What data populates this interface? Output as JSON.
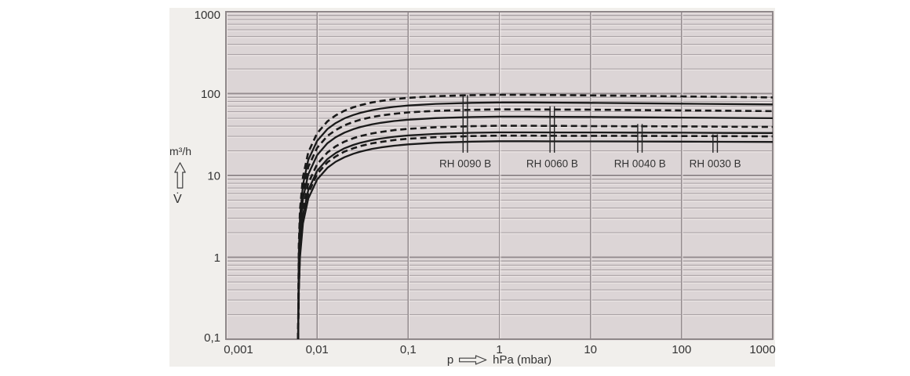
{
  "colors": {
    "panel_bg": "#f1efec",
    "plot_bg": "#dcd5d6",
    "grid_minor": "#aaa2a5",
    "grid_major": "#948c8f",
    "grid_highlight": "#ebe5e4",
    "plot_border": "#8e8789",
    "curve": "#1a1a1a",
    "text": "#333333"
  },
  "y_axis": {
    "unit": "m³/h",
    "symbol": "V̇",
    "ticks": [
      {
        "label": "1000",
        "value": 1000
      },
      {
        "label": "100",
        "value": 100
      },
      {
        "label": "10",
        "value": 10
      },
      {
        "label": "1",
        "value": 1
      },
      {
        "label": "0,1",
        "value": 0.1
      }
    ]
  },
  "x_axis": {
    "symbol": "p",
    "unit_label": "hPa (mbar)",
    "ticks": [
      {
        "label": "0,001",
        "value": 0.001
      },
      {
        "label": "0,01",
        "value": 0.01
      },
      {
        "label": "0,1",
        "value": 0.1
      },
      {
        "label": "1",
        "value": 1
      },
      {
        "label": "10",
        "value": 10
      },
      {
        "label": "100",
        "value": 100
      },
      {
        "label": "1000",
        "value": 1000
      }
    ]
  },
  "chart_data": {
    "type": "line",
    "title": "",
    "xlabel": "p hPa (mbar)",
    "ylabel": "V̇ m³/h",
    "x_scale": "log",
    "y_scale": "log",
    "xlim": [
      0.001,
      1000
    ],
    "ylim": [
      0.1,
      1000
    ],
    "grid": "horizontal major+minor log lines, vertical decade lines",
    "legend_position": "inline pump labels under marker ticks",
    "p": [
      0.0062,
      0.0063,
      0.0065,
      0.007,
      0.008,
      0.01,
      0.013,
      0.016,
      0.02,
      0.025,
      0.03,
      0.04,
      0.05,
      0.07,
      0.1,
      0.2,
      0.5,
      1,
      2,
      5,
      10,
      30,
      100,
      300,
      1000
    ],
    "series": [
      {
        "name": "RH 0090 B",
        "line": "dashed",
        "v": [
          0.1,
          1.4,
          3.8,
          9.6,
          19.1,
          32.7,
          45.8,
          54.2,
          61.8,
          68.0,
          72.3,
          77.9,
          81.3,
          85.5,
          88.8,
          92.9,
          95.6,
          96.7,
          96.5,
          95.8,
          95.1,
          94.0,
          92.5,
          91.2,
          89.8
        ]
      },
      {
        "name": "RH 0090 B",
        "line": "solid",
        "v": [
          0.1,
          1.1,
          3.1,
          7.7,
          15.4,
          26.4,
          36.9,
          43.7,
          49.8,
          54.8,
          58.3,
          62.8,
          65.6,
          68.9,
          71.6,
          74.9,
          77.1,
          78.0,
          77.9,
          77.5,
          77.1,
          76.3,
          75.5,
          74.6,
          73.8
        ]
      },
      {
        "name": "RH 0060 B",
        "line": "dashed",
        "v": [
          0.1,
          0.9,
          2.5,
          6.4,
          12.7,
          21.7,
          30.4,
          35.9,
          41.0,
          45.1,
          48.0,
          51.7,
          54.0,
          56.7,
          58.9,
          61.6,
          63.4,
          64.2,
          64.1,
          63.8,
          63.6,
          63.0,
          62.4,
          61.8,
          61.1
        ]
      },
      {
        "name": "RH 0060 B",
        "line": "solid",
        "v": [
          0.1,
          0.7,
          2.1,
          5.2,
          10.3,
          17.7,
          24.8,
          29.3,
          33.4,
          36.8,
          39.1,
          42.1,
          44.0,
          46.2,
          48.0,
          50.2,
          51.7,
          52.3,
          52.3,
          52.0,
          51.9,
          51.4,
          51.0,
          50.5,
          50.1
        ]
      },
      {
        "name": "RH 0040 B",
        "line": "dashed",
        "v": [
          0.1,
          0.6,
          1.6,
          4.0,
          8.0,
          13.7,
          19.1,
          22.7,
          25.9,
          28.5,
          30.3,
          32.6,
          34.0,
          35.8,
          37.1,
          38.9,
          40.0,
          40.5,
          40.4,
          40.3,
          40.1,
          39.9,
          39.8,
          39.5,
          39.2
        ]
      },
      {
        "name": "RH 0040 B",
        "line": "solid",
        "v": [
          0.1,
          0.5,
          1.3,
          3.3,
          6.6,
          11.4,
          15.9,
          18.8,
          21.5,
          23.6,
          25.1,
          27.0,
          28.2,
          29.7,
          30.8,
          32.2,
          33.2,
          33.6,
          33.6,
          33.5,
          33.5,
          33.4,
          33.3,
          33.1,
          33.0
        ]
      },
      {
        "name": "RH 0030 B",
        "line": "dashed",
        "v": [
          0.1,
          0.4,
          1.2,
          3.0,
          6.0,
          10.4,
          14.5,
          17.1,
          19.6,
          21.5,
          22.9,
          24.7,
          25.7,
          27.1,
          28.1,
          29.4,
          30.3,
          30.6,
          30.6,
          30.5,
          30.5,
          30.4,
          30.3,
          30.2,
          30.0
        ]
      },
      {
        "name": "RH 0030 B",
        "line": "solid",
        "v": [
          0.1,
          0.4,
          1.0,
          2.6,
          5.2,
          8.9,
          12.4,
          14.7,
          16.7,
          18.4,
          19.6,
          21.1,
          22.0,
          23.1,
          24.0,
          25.1,
          25.9,
          26.2,
          26.2,
          26.1,
          26.1,
          26.0,
          25.9,
          25.8,
          25.7
        ]
      }
    ],
    "pump_labels": [
      {
        "label": "RH 0090 B",
        "p_tick1": 0.4,
        "p_tick2": 0.447,
        "v_top": 96.0,
        "v_bottom": 19,
        "label_v": 14
      },
      {
        "label": "RH 0060 B",
        "p_tick1": 3.6,
        "p_tick2": 4.02,
        "v_top": 70.0,
        "v_bottom": 19,
        "label_v": 14
      },
      {
        "label": "RH 0040 B",
        "p_tick1": 33,
        "p_tick2": 36.9,
        "v_top": 42.5,
        "v_bottom": 19,
        "label_v": 14
      },
      {
        "label": "RH 0030 B",
        "p_tick1": 221,
        "p_tick2": 247,
        "v_top": 31.8,
        "v_bottom": 19,
        "label_v": 14
      }
    ]
  }
}
